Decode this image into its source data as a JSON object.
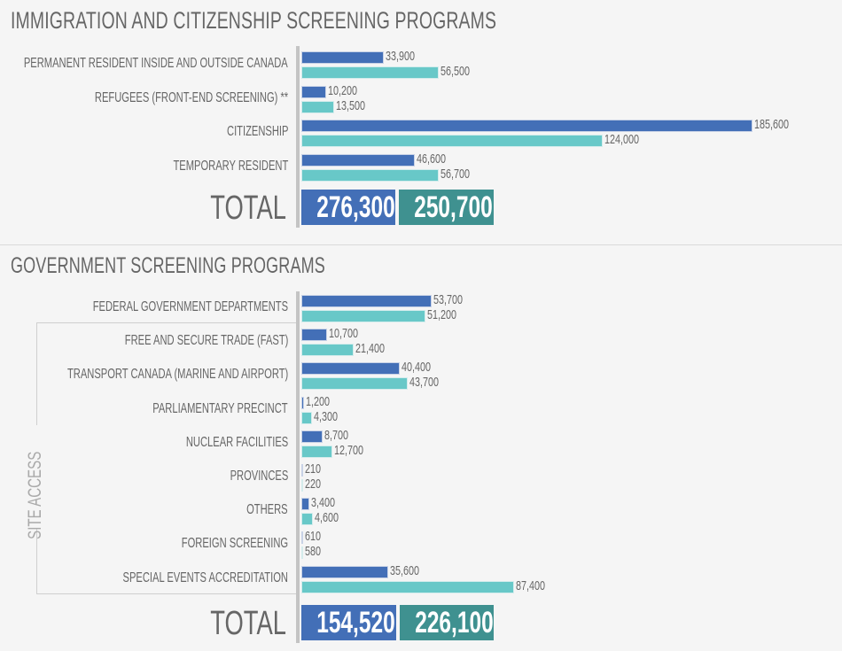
{
  "colors": {
    "series_2017": "#436fb7",
    "series_2018": "#68c8c8",
    "total_2018": "#3f9190"
  },
  "chart_data": [
    {
      "type": "bar",
      "orientation": "horizontal",
      "title": "IMMIGRATION AND CITIZENSHIP SCREENING PROGRAMS",
      "categories": [
        "PERMANENT RESIDENT INSIDE AND OUTSIDE CANADA",
        "REFUGEES (FRONT-END SCREENING) **",
        "CITIZENSHIP",
        "TEMPORARY RESIDENT"
      ],
      "series": [
        {
          "name": "series-1",
          "values": [
            33900,
            10200,
            185600,
            46600
          ],
          "labels": [
            "33,900",
            "10,200",
            "185,600",
            "46,600"
          ]
        },
        {
          "name": "series-2",
          "values": [
            56500,
            13500,
            124000,
            56700
          ],
          "labels": [
            "56,500",
            "13,500",
            "124,000",
            "56,700"
          ]
        }
      ],
      "total_label": "TOTAL",
      "totals": [
        "276,300",
        "250,700"
      ],
      "xlim": [
        0,
        185600
      ],
      "grid": false
    },
    {
      "type": "bar",
      "orientation": "horizontal",
      "title": "GOVERNMENT SCREENING PROGRAMS",
      "categories": [
        "FEDERAL GOVERNMENT DEPARTMENTS",
        "FREE AND SECURE TRADE (FAST)",
        "TRANSPORT CANADA (MARINE AND AIRPORT)",
        "PARLIAMENTARY PRECINCT",
        "NUCLEAR FACILITIES",
        "PROVINCES",
        "OTHERS",
        "FOREIGN SCREENING",
        "SPECIAL EVENTS ACCREDITATION"
      ],
      "group_annotation": {
        "label": "SITE ACCESS",
        "covers_categories": [
          1,
          8
        ]
      },
      "series": [
        {
          "name": "series-1",
          "values": [
            53700,
            10700,
            40400,
            1200,
            8700,
            210,
            3400,
            610,
            35600
          ],
          "labels": [
            "53,700",
            "10,700",
            "40,400",
            "1,200",
            "8,700",
            "210",
            "3,400",
            "610",
            "35,600"
          ]
        },
        {
          "name": "series-2",
          "values": [
            51200,
            21400,
            43700,
            4300,
            12700,
            220,
            4600,
            580,
            87400
          ],
          "labels": [
            "51,200",
            "21,400",
            "43,700",
            "4,300",
            "12,700",
            "220",
            "4,600",
            "580",
            "87,400"
          ]
        }
      ],
      "total_label": "TOTAL",
      "totals": [
        "154,520",
        "226,100"
      ],
      "grid": false
    }
  ]
}
